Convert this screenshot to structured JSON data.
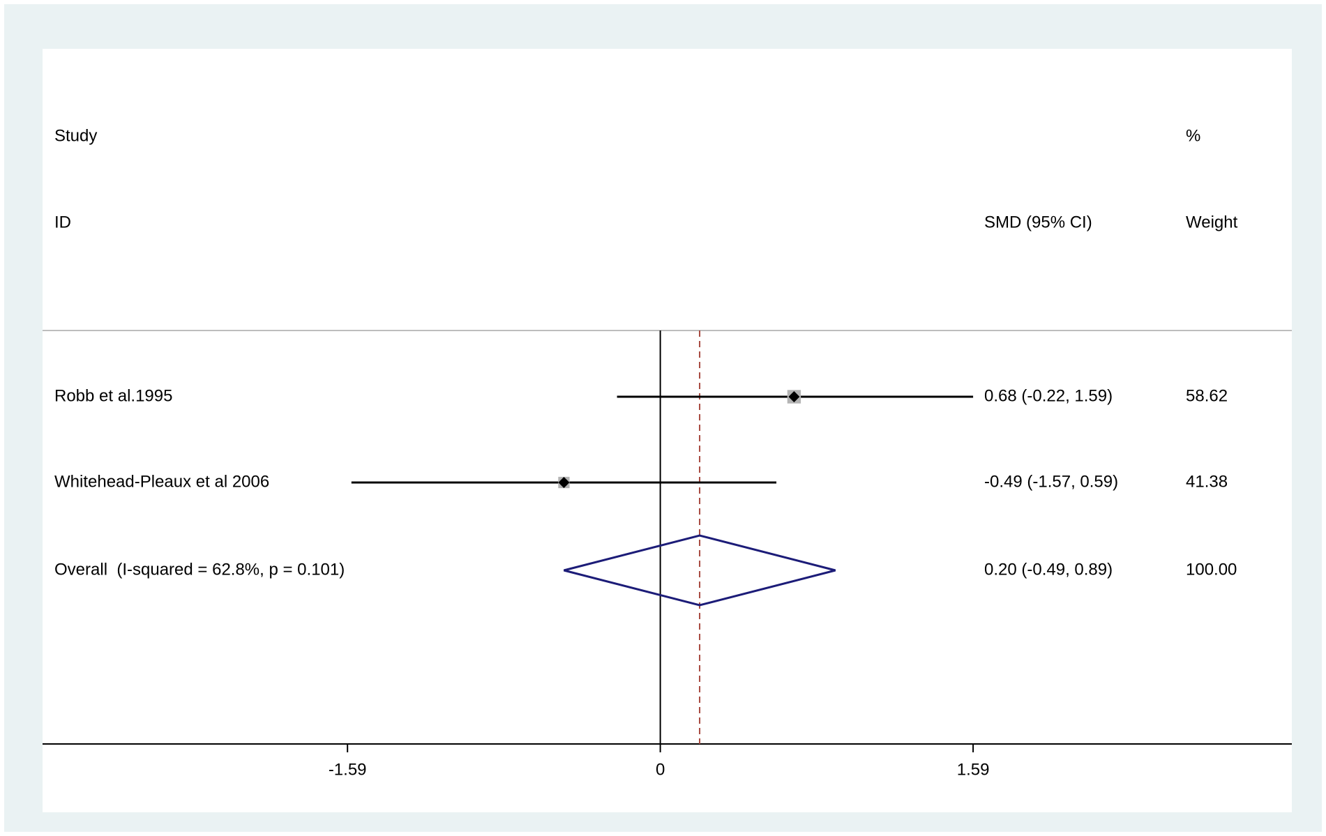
{
  "chart_data": {
    "type": "forest",
    "headers": {
      "study": "Study",
      "id": "ID",
      "effect": "SMD (95% CI)",
      "weight_top": "%",
      "weight": "Weight"
    },
    "studies": [
      {
        "name": "Robb et al.1995",
        "smd": 0.68,
        "lower": -0.22,
        "upper": 1.59,
        "value_label": "0.68 (-0.22, 1.59)",
        "weight": 58.62
      },
      {
        "name": "Whitehead-Pleaux et al 2006",
        "smd": -0.49,
        "lower": -1.57,
        "upper": 0.59,
        "value_label": "-0.49 (-1.57, 0.59)",
        "weight": 41.38
      }
    ],
    "overall": {
      "name": "Overall  (I-squared = 62.8%, p = 0.101)",
      "smd": 0.2,
      "lower": -0.49,
      "upper": 0.89,
      "value_label": "0.20 (-0.49, 0.89)",
      "weight": 100,
      "weight_label": "100.00"
    },
    "xlim": [
      -3.14,
      3.21
    ],
    "xticks": [
      -1.59,
      0,
      1.59
    ],
    "colors": {
      "ci": "#000000",
      "box": "#b4b4b4",
      "diamond": "#1c1c78",
      "overall_line": "#a84a40",
      "null_line": "#000000"
    }
  }
}
